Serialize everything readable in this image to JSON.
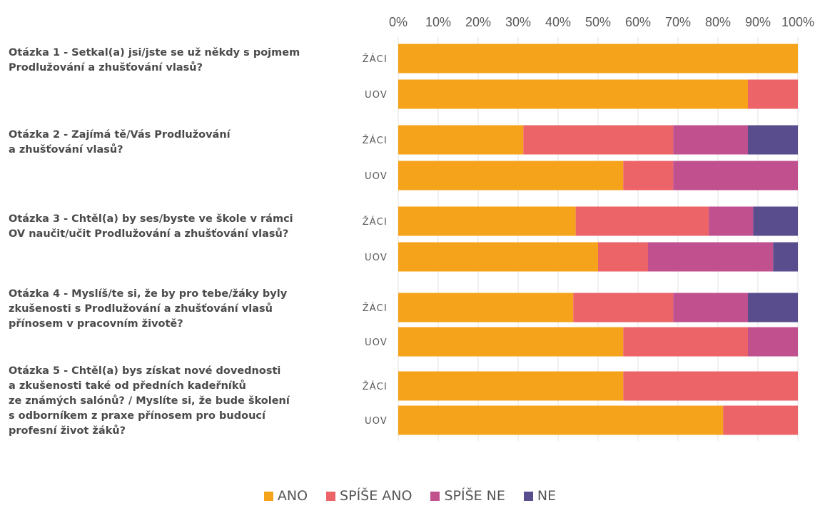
{
  "chart_data": {
    "type": "bar",
    "orientation": "horizontal",
    "stacked": "percent",
    "x_ticks": [
      "0%",
      "10%",
      "20%",
      "30%",
      "40%",
      "50%",
      "60%",
      "70%",
      "80%",
      "90%",
      "100%"
    ],
    "xlim": [
      0,
      100
    ],
    "xaxis_position": "top",
    "grid": true,
    "legend_position": "bottom",
    "categories": [
      "ŽÁCI",
      "UOV",
      "ŽÁCI",
      "UOV",
      "ŽÁCI",
      "UOV",
      "ŽÁCI",
      "UOV",
      "ŽÁCI",
      "UOV"
    ],
    "series": [
      {
        "name": "ANO",
        "color": "#F5A31A",
        "values": [
          100,
          87.5,
          31.3,
          56.3,
          44.4,
          50.0,
          43.8,
          56.3,
          56.3,
          81.3
        ]
      },
      {
        "name": "SPÍŠE ANO",
        "color": "#EC6468",
        "values": [
          0,
          12.5,
          37.5,
          12.5,
          33.3,
          12.5,
          25.0,
          31.2,
          43.7,
          18.7
        ]
      },
      {
        "name": "SPÍŠE NE",
        "color": "#C1508F",
        "values": [
          0,
          0,
          18.7,
          31.2,
          11.1,
          31.3,
          18.7,
          12.5,
          0,
          0
        ]
      },
      {
        "name": "NE",
        "color": "#5A4D8E",
        "values": [
          0,
          0,
          12.5,
          0,
          11.2,
          6.2,
          12.5,
          0,
          0,
          0
        ]
      }
    ],
    "questions": [
      {
        "lines": [
          "Otázka 1 - Setkal(a) jsi/jste se už někdy s pojmem",
          "Prodlužování a zhušťování vlasů?"
        ]
      },
      {
        "lines": [
          "Otázka 2 - Zajímá tě/Vás Prodlužování",
          "a zhušťování vlasů?"
        ]
      },
      {
        "lines": [
          "Otázka 3 - Chtěl(a) by ses/byste ve škole v rámci",
          "OV naučit/učit Prodlužování a zhušťování vlasů?"
        ]
      },
      {
        "lines": [
          "Otázka 4 - Myslíš/te si, že by pro tebe/žáky byly",
          "zkušenosti s Prodlužování a zhušťování vlasů",
          "přínosem v pracovním životě?"
        ]
      },
      {
        "lines": [
          "Otázka 5 - Chtěl(a) bys získat nové dovednosti",
          "a zkušenosti také od předních kadeřníků",
          "ze známých salónů? / Myslíte si, že bude školení",
          "s odborníkem z praxe přínosem pro budoucí",
          "profesní život žáků?"
        ]
      }
    ]
  }
}
